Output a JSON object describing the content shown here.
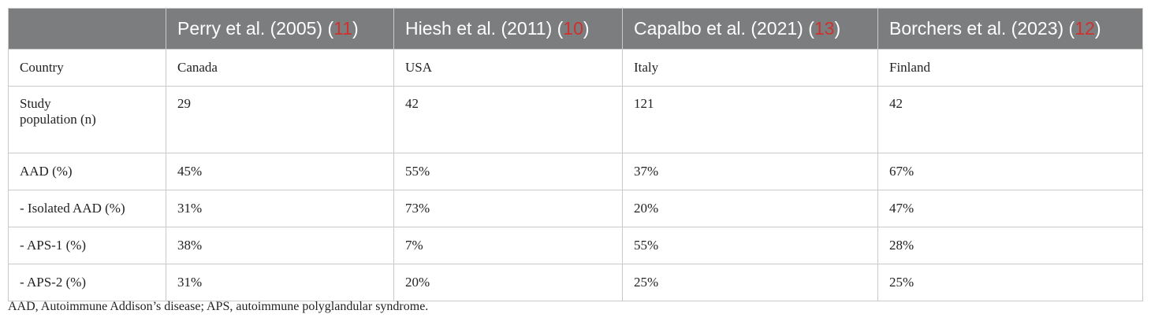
{
  "table": {
    "header": {
      "corner": "",
      "columns": [
        {
          "label": "Perry et al. (2005) (",
          "ref": "11",
          "close": ")"
        },
        {
          "label": "Hiesh et al. (2011) (",
          "ref": "10",
          "close": ")"
        },
        {
          "label": "Capalbo et al. (2021) (",
          "ref": "13",
          "close": ")"
        },
        {
          "label": "Borchers et al. (2023) (",
          "ref": "12",
          "close": ")"
        }
      ]
    },
    "rows": [
      {
        "label": "Country",
        "cells": [
          "Canada",
          "USA",
          "Italy",
          "Finland"
        ]
      },
      {
        "label_line1": "Study",
        "label_line2": "population (n)",
        "cells": [
          "29",
          "42",
          "121",
          "42"
        ]
      },
      {
        "label": "AAD (%)",
        "cells": [
          "45%",
          "55%",
          "37%",
          "67%"
        ]
      },
      {
        "label": "- Isolated AAD (%)",
        "cells": [
          "31%",
          "73%",
          "20%",
          "47%"
        ]
      },
      {
        "label": "- APS-1 (%)",
        "cells": [
          "38%",
          "7%",
          "55%",
          "28%"
        ]
      },
      {
        "label": "- APS-2 (%)",
        "cells": [
          "31%",
          "20%",
          "25%",
          "25%"
        ]
      }
    ]
  },
  "footnote": "AAD, Autoimmune Addison’s disease; APS, autoimmune polyglandular syndrome."
}
